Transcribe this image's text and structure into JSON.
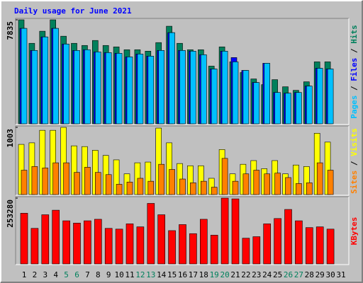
{
  "chart_data": [
    {
      "type": "bar",
      "title": "Daily usage for June 2021",
      "separator": " / ",
      "ylim": [
        0,
        7835
      ],
      "yticks": [
        7835
      ],
      "series": [
        {
          "name": "Hits",
          "color": "#00805c",
          "values": [
            7835,
            6064,
            6976,
            7835,
            6600,
            6064,
            5903,
            6279,
            5903,
            5796,
            5581,
            5581,
            5474,
            6118,
            7352,
            6064,
            5581,
            5581,
            4347,
            5796,
            4669,
            3864,
            3381,
            2952,
            3327,
            2791,
            2522,
            3166,
            4669,
            4669,
            null
          ]
        },
        {
          "name": "Files",
          "color": "#0000ff",
          "values": [
            7190,
            5527,
            6547,
            7190,
            6010,
            5527,
            5581,
            5420,
            5366,
            5313,
            5044,
            5259,
            5098,
            5527,
            6869,
            5527,
            5474,
            5205,
            4132,
            5474,
            4991,
            4025,
            3112,
            4561,
            2361,
            2308,
            2361,
            2844,
            4186,
            4132,
            null
          ]
        },
        {
          "name": "Pages",
          "color": "#00c0ff",
          "values": [
            7190,
            5527,
            6547,
            7190,
            6010,
            5527,
            5581,
            5420,
            5366,
            5313,
            5044,
            5259,
            5098,
            5527,
            6869,
            5527,
            5474,
            5205,
            4132,
            5474,
            4669,
            4025,
            3112,
            4561,
            2361,
            2308,
            2361,
            2844,
            4186,
            4132,
            null
          ]
        }
      ]
    },
    {
      "type": "bar",
      "separator": " / ",
      "ylim": [
        0,
        1003
      ],
      "yticks": [
        1003
      ],
      "series": [
        {
          "name": "Visits",
          "color": "#ffff00",
          "values": [
            749,
            772,
            959,
            959,
            1003,
            727,
            716,
            661,
            584,
            518,
            309,
            474,
            485,
            992,
            772,
            463,
            430,
            430,
            243,
            672,
            309,
            452,
            507,
            386,
            507,
            309,
            441,
            419,
            915,
            783,
            null
          ]
        },
        {
          "name": "Sites",
          "color": "#ff8000",
          "values": [
            364,
            419,
            397,
            474,
            474,
            331,
            408,
            331,
            298,
            154,
            187,
            243,
            199,
            452,
            375,
            232,
            176,
            199,
            110,
            540,
            199,
            309,
            364,
            309,
            320,
            254,
            165,
            176,
            474,
            364,
            null
          ]
        }
      ]
    },
    {
      "type": "bar",
      "ylim": [
        0,
        253280
      ],
      "yticks": [
        253280
      ],
      "categories": [
        "1",
        "2",
        "3",
        "4",
        "5",
        "6",
        "7",
        "8",
        "9",
        "10",
        "11",
        "12",
        "13",
        "14",
        "15",
        "16",
        "17",
        "18",
        "19",
        "20",
        "21",
        "22",
        "23",
        "24",
        "25",
        "26",
        "27",
        "28",
        "29",
        "30",
        "31"
      ],
      "category_colors": [
        "#000000",
        "#000000",
        "#000000",
        "#000000",
        "#00805c",
        "#00805c",
        "#000000",
        "#000000",
        "#000000",
        "#000000",
        "#000000",
        "#00805c",
        "#00805c",
        "#000000",
        "#000000",
        "#000000",
        "#000000",
        "#000000",
        "#00805c",
        "#00805c",
        "#000000",
        "#000000",
        "#000000",
        "#000000",
        "#000000",
        "#00805c",
        "#00805c",
        "#000000",
        "#000000",
        "#000000",
        "#000000"
      ],
      "series": [
        {
          "name": "KBytes",
          "color": "#ff0000",
          "values": [
            195060,
            136830,
            189240,
            206700,
            165950,
            157210,
            165950,
            171770,
            136830,
            133920,
            154300,
            142650,
            232900,
            189240,
            128100,
            151390,
            116450,
            171770,
            110630,
            253280,
            250370,
            98980,
            104810,
            154300,
            174670,
            209610,
            165950,
            139740,
            142650,
            133920,
            null
          ]
        }
      ]
    }
  ]
}
